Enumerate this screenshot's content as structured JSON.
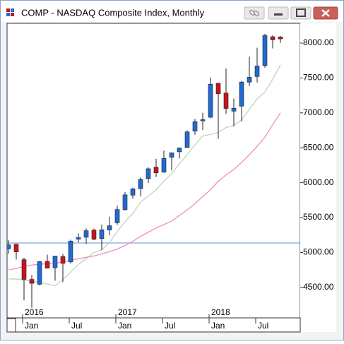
{
  "window_title": "COMP - NASDAQ Composite Index, Monthly",
  "chart_data": {
    "type": "candlestick",
    "categories": [
      null,
      null,
      "Jan",
      null,
      null,
      null,
      null,
      null,
      "Jul",
      null,
      null,
      null,
      null,
      null,
      "Jan",
      null,
      null,
      null,
      null,
      null,
      "Jul",
      null,
      null,
      null,
      null,
      null,
      "Jan",
      null,
      null,
      null,
      null,
      null,
      "Jul",
      null,
      null,
      null
    ],
    "years": [
      null,
      null,
      "2016",
      null,
      null,
      null,
      null,
      null,
      null,
      null,
      null,
      null,
      null,
      null,
      "2017",
      null,
      null,
      null,
      null,
      null,
      null,
      null,
      null,
      null,
      null,
      null,
      "2018",
      null,
      null,
      null,
      null,
      null,
      null,
      null,
      null,
      null
    ],
    "open": [
      5053,
      5118,
      4897,
      4614,
      4544,
      4873,
      4781,
      4942,
      4864,
      5190,
      5218,
      5320,
      5199,
      5322,
      5425,
      5612,
      5821,
      5914,
      6058,
      6223,
      6150,
      6363,
      6442,
      6503,
      6739,
      6885,
      6937,
      7424,
      7284,
      7025,
      7096,
      7440,
      7521,
      7677,
      8091,
      8088
    ],
    "high": [
      5176,
      5125,
      4926,
      4676,
      4870,
      4969,
      4951,
      4980,
      5183,
      5272,
      5344,
      5343,
      5400,
      5512,
      5669,
      5867,
      5928,
      6075,
      6221,
      6341,
      6460,
      6423,
      6507,
      6749,
      6914,
      7003,
      7506,
      7433,
      7637,
      7205,
      7453,
      7806,
      7933,
      8133,
      8110,
      8103
    ],
    "low": [
      4984,
      4899,
      4313,
      4210,
      4529,
      4770,
      4596,
      4575,
      4842,
      5145,
      5125,
      5178,
      5034,
      5249,
      5397,
      5601,
      5769,
      5805,
      5996,
      6081,
      6141,
      6177,
      6345,
      6498,
      6685,
      6754,
      6924,
      6631,
      6985,
      6805,
      6880,
      7382,
      7435,
      7647,
      7924,
      8002
    ],
    "close": [
      5109,
      5007,
      4614,
      4558,
      4870,
      4775,
      4948,
      4843,
      5162,
      5213,
      5312,
      5189,
      5324,
      5383,
      5615,
      5825,
      5912,
      6048,
      6199,
      6140,
      6348,
      6429,
      6496,
      6728,
      6874,
      6903,
      7411,
      7273,
      7063,
      7066,
      7442,
      7510,
      7672,
      8110,
      8046,
      8060
    ],
    "up_color": "#1f6ad6",
    "down_color": "#c8141e",
    "series": [
      {
        "color": "#b8d9b8",
        "values": [
          4620,
          4620,
          4600,
          4590,
          4570,
          4550,
          4520,
          4610,
          4720,
          4830,
          4910,
          5000,
          5040,
          5140,
          5300,
          5440,
          5560,
          5720,
          5810,
          5900,
          6020,
          6130,
          6270,
          6400,
          6540,
          6670,
          6690,
          6720,
          6790,
          6820,
          6900,
          7050,
          7200,
          7300,
          7480,
          7690
        ]
      },
      {
        "color": "#f08cc4",
        "values": [
          4750,
          4770,
          4800,
          4820,
          4830,
          4840,
          4850,
          4860,
          4890,
          4910,
          4930,
          4950,
          4980,
          5010,
          5050,
          5100,
          5160,
          5230,
          5290,
          5350,
          5400,
          5450,
          5530,
          5610,
          5700,
          5800,
          5900,
          6020,
          6110,
          6190,
          6290,
          6400,
          6520,
          6650,
          6830,
          7000
        ]
      }
    ],
    "hline": {
      "value": 5136,
      "color": "#5b8fe0"
    },
    "ylim": [
      4063,
      8283
    ],
    "yticks": [
      {
        "value": 4500,
        "label": "4500.00"
      },
      {
        "value": 5000,
        "label": "5000.00"
      },
      {
        "value": 5500,
        "label": "5500.00"
      },
      {
        "value": 6000,
        "label": "6000.00"
      },
      {
        "value": 6500,
        "label": "6500.00"
      },
      {
        "value": 7000,
        "label": "7000.00"
      },
      {
        "value": 7500,
        "label": "7500.00"
      },
      {
        "value": 8000,
        "label": "8000.00"
      }
    ]
  }
}
